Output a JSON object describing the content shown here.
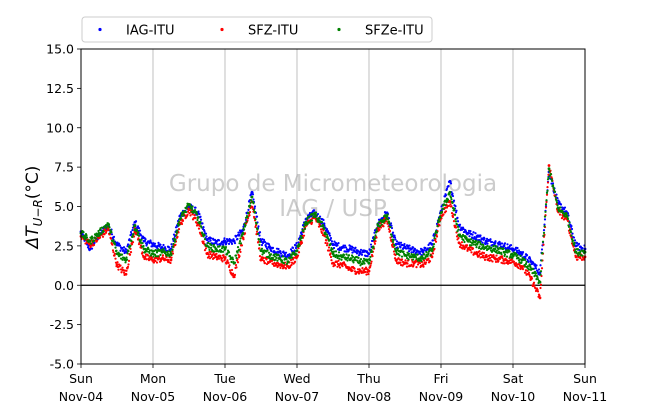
{
  "chart_data": {
    "type": "scatter",
    "title": "",
    "xlabel": "",
    "ylabel": "ΔT_{U−R}(°C)",
    "ylim": [
      -5.0,
      15.0
    ],
    "yticks": [
      "-5.0",
      "-2.5",
      "0.0",
      "2.5",
      "5.0",
      "7.5",
      "10.0",
      "12.5",
      "15.0"
    ],
    "xlim": [
      "Nov-04 00:00",
      "Nov-11 00:00"
    ],
    "xticks": [
      {
        "day": "Sun",
        "date": "Nov-04"
      },
      {
        "day": "Mon",
        "date": "Nov-05"
      },
      {
        "day": "Tue",
        "date": "Nov-06"
      },
      {
        "day": "Wed",
        "date": "Nov-07"
      },
      {
        "day": "Thu",
        "date": "Nov-08"
      },
      {
        "day": "Fri",
        "date": "Nov-09"
      },
      {
        "day": "Sat",
        "date": "Nov-10"
      },
      {
        "day": "Sun",
        "date": "Nov-11"
      }
    ],
    "grid": "vertical",
    "zero_line": true,
    "legend_position": "top, outside plot, 3 columns",
    "watermark": [
      "Grupo de Micrometeorologia",
      "IAG / USP"
    ],
    "series": [
      {
        "name": "IAG-ITU",
        "color": "#0000ff",
        "x_hours": [
          0,
          3,
          6,
          9,
          12,
          15,
          18,
          21,
          24,
          27,
          30,
          33,
          36,
          39,
          42,
          45,
          48,
          51,
          54,
          57,
          60,
          63,
          66,
          69,
          72,
          75,
          78,
          81,
          84,
          87,
          90,
          93,
          96,
          99,
          102,
          105,
          108,
          111,
          114,
          117,
          120,
          123,
          126,
          129,
          132,
          135,
          138,
          141,
          144,
          147,
          150,
          153,
          156,
          159,
          162,
          165,
          168
        ],
        "values": [
          3.4,
          2.3,
          3.2,
          3.8,
          2.6,
          2.1,
          4.0,
          2.8,
          2.6,
          2.4,
          2.3,
          4.4,
          5.0,
          4.6,
          2.9,
          2.7,
          2.8,
          2.8,
          3.5,
          5.9,
          2.8,
          2.4,
          2.1,
          1.9,
          2.5,
          4.2,
          4.6,
          3.9,
          2.6,
          2.4,
          2.3,
          2.1,
          2.0,
          3.9,
          4.6,
          2.6,
          2.4,
          2.2,
          2.1,
          2.6,
          4.7,
          6.6,
          3.8,
          3.3,
          3.1,
          2.8,
          2.7,
          2.5,
          2.3,
          2.0,
          1.5,
          0.8,
          7.2,
          5.2,
          4.6,
          2.5,
          2.3
        ]
      },
      {
        "name": "SFZ-ITU",
        "color": "#ff0000",
        "x_hours": [
          0,
          3,
          6,
          9,
          12,
          15,
          18,
          21,
          24,
          27,
          30,
          33,
          36,
          39,
          42,
          45,
          48,
          51,
          54,
          57,
          60,
          63,
          66,
          69,
          72,
          75,
          78,
          81,
          84,
          87,
          90,
          93,
          96,
          99,
          102,
          105,
          108,
          111,
          114,
          117,
          120,
          123,
          126,
          129,
          132,
          135,
          138,
          141,
          144,
          147,
          150,
          153,
          156,
          159,
          162,
          165,
          168
        ],
        "values": [
          3.1,
          2.6,
          3.0,
          3.6,
          1.3,
          0.7,
          3.6,
          1.8,
          1.6,
          1.7,
          1.6,
          3.9,
          4.8,
          3.9,
          2.0,
          1.8,
          1.7,
          0.6,
          3.0,
          5.3,
          1.6,
          1.5,
          1.3,
          1.2,
          1.8,
          3.8,
          4.3,
          3.2,
          1.4,
          1.3,
          1.0,
          0.9,
          0.9,
          3.6,
          4.2,
          1.6,
          1.4,
          1.4,
          1.3,
          1.8,
          4.4,
          5.3,
          2.7,
          2.3,
          2.0,
          1.8,
          1.7,
          1.6,
          1.5,
          1.2,
          0.4,
          -0.8,
          7.6,
          4.7,
          4.2,
          1.8,
          1.8
        ]
      },
      {
        "name": "SFZe-ITU",
        "color": "#008000",
        "x_hours": [
          0,
          3,
          6,
          9,
          12,
          15,
          18,
          21,
          24,
          27,
          30,
          33,
          36,
          39,
          42,
          45,
          48,
          51,
          54,
          57,
          60,
          63,
          66,
          69,
          72,
          75,
          78,
          81,
          84,
          87,
          90,
          93,
          96,
          99,
          102,
          105,
          108,
          111,
          114,
          117,
          120,
          123,
          126,
          129,
          132,
          135,
          138,
          141,
          144,
          147,
          150,
          153,
          156,
          159,
          162,
          165,
          168
        ],
        "values": [
          3.3,
          2.8,
          3.3,
          3.9,
          2.0,
          1.6,
          3.8,
          2.3,
          2.0,
          2.1,
          2.0,
          4.2,
          5.1,
          4.3,
          2.5,
          2.3,
          2.3,
          1.4,
          3.3,
          5.6,
          2.2,
          1.9,
          1.7,
          1.5,
          2.2,
          4.0,
          4.5,
          3.6,
          2.0,
          1.8,
          1.7,
          1.5,
          1.4,
          3.8,
          4.4,
          2.2,
          1.9,
          1.8,
          1.7,
          2.2,
          4.6,
          5.9,
          3.2,
          2.8,
          2.6,
          2.4,
          2.3,
          2.1,
          1.9,
          1.6,
          1.0,
          0.2,
          7.4,
          4.9,
          4.4,
          2.1,
          2.1
        ]
      }
    ]
  }
}
